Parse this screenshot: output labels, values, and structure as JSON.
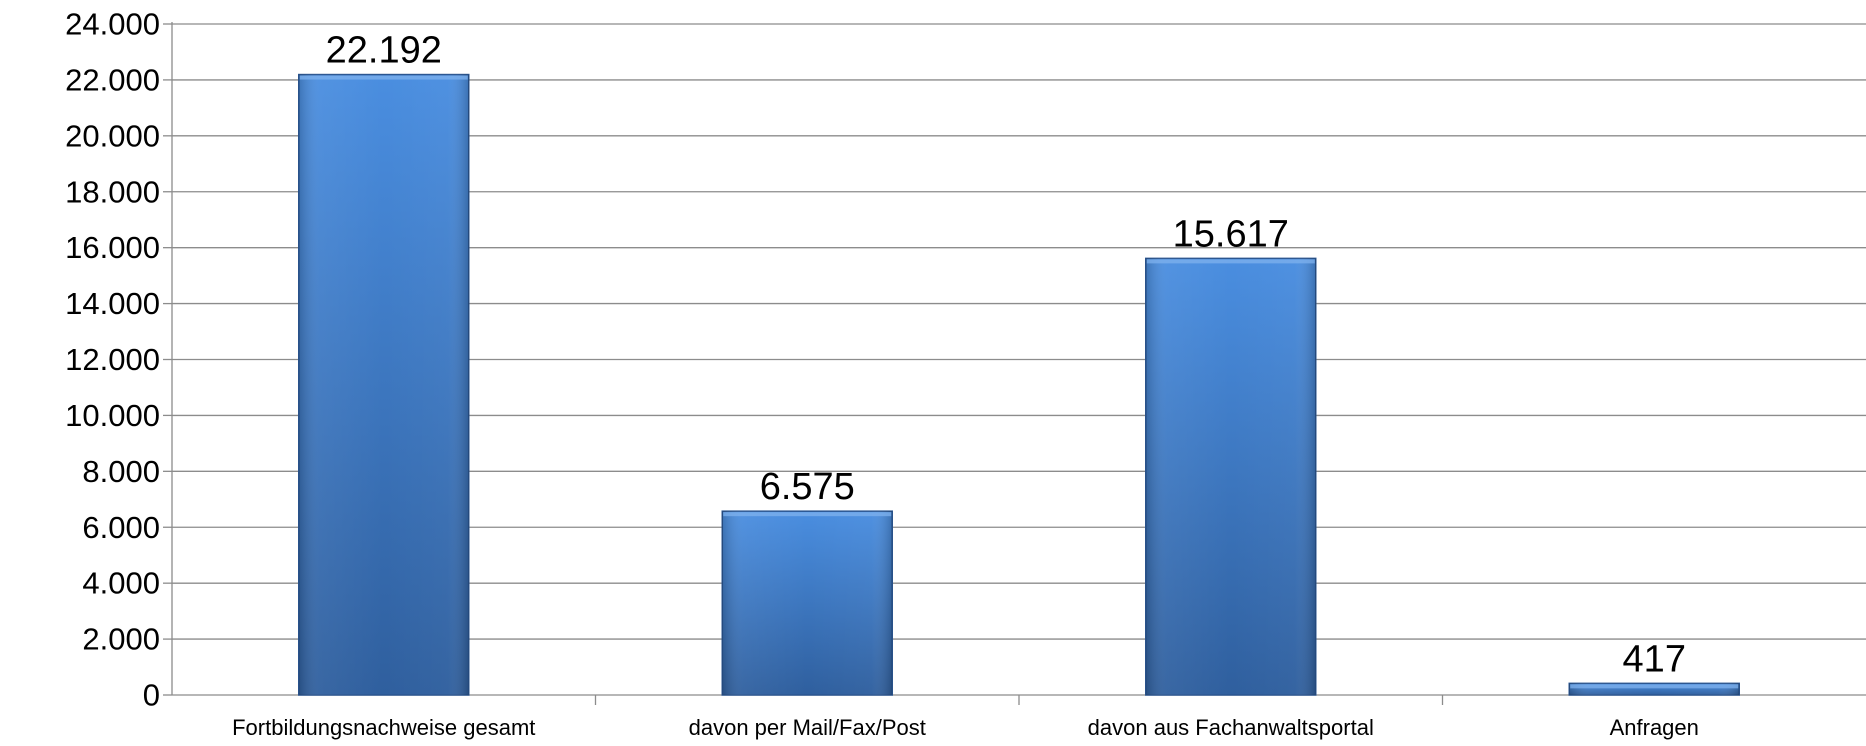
{
  "chart_data": {
    "type": "bar",
    "categories": [
      "Fortbildungsnachweise gesamt",
      "davon per Mail/Fax/Post",
      "davon aus Fachanwaltsportal",
      "Anfragen"
    ],
    "values": [
      22192,
      6575,
      15617,
      417
    ],
    "value_labels": [
      "22.192",
      "6.575",
      "15.617",
      "417"
    ],
    "y_ticks": [
      0,
      2000,
      4000,
      6000,
      8000,
      10000,
      12000,
      14000,
      16000,
      18000,
      20000,
      22000,
      24000
    ],
    "y_tick_labels": [
      "0",
      "2.000",
      "4.000",
      "6.000",
      "8.000",
      "10.000",
      "12.000",
      "14.000",
      "16.000",
      "18.000",
      "20.000",
      "22.000",
      "24.000"
    ],
    "ylim": [
      0,
      24000
    ],
    "grid": true,
    "legend": "none",
    "colors": {
      "bar_top": "#4a8ee0",
      "bar_bottom": "#2f5f9e",
      "bar_edge": "#2a5590"
    }
  }
}
